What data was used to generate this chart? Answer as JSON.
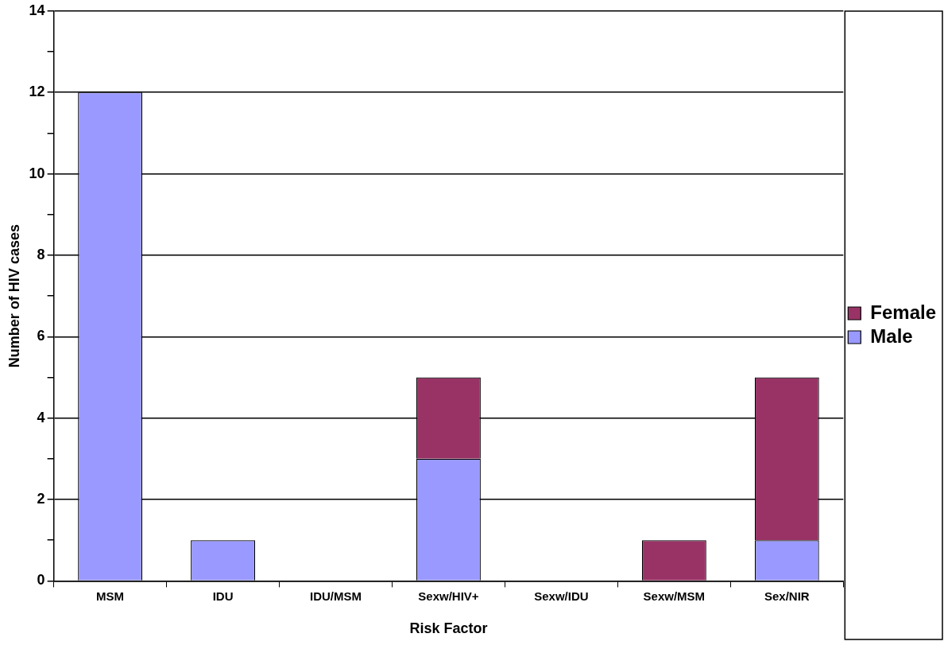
{
  "chart_data": {
    "type": "bar",
    "stacked": true,
    "xlabel": "Risk Factor",
    "ylabel": "Number of HIV cases",
    "categories": [
      "MSM",
      "IDU",
      "IDU/MSM",
      "Sexw/HIV+",
      "Sexw/IDU",
      "Sexw/MSM",
      "Sex/NIR"
    ],
    "series": [
      {
        "name": "Male",
        "color": "#9999ff",
        "values": [
          12,
          1,
          0,
          3,
          0,
          0,
          1
        ]
      },
      {
        "name": "Female",
        "color": "#993366",
        "values": [
          0,
          0,
          0,
          2,
          0,
          1,
          4
        ]
      }
    ],
    "ylim": [
      0,
      14
    ],
    "yticks": [
      0,
      {
        "value": 1,
        "label": null
      },
      2,
      {
        "value": 3,
        "label": null
      },
      4,
      {
        "value": 5,
        "label": null
      },
      6,
      {
        "value": 7,
        "label": null
      },
      8,
      {
        "value": 9,
        "label": null
      },
      10,
      {
        "value": 11,
        "label": null
      },
      12,
      {
        "value": 13,
        "label": null
      },
      14
    ],
    "grid": "y",
    "legend": "right"
  }
}
